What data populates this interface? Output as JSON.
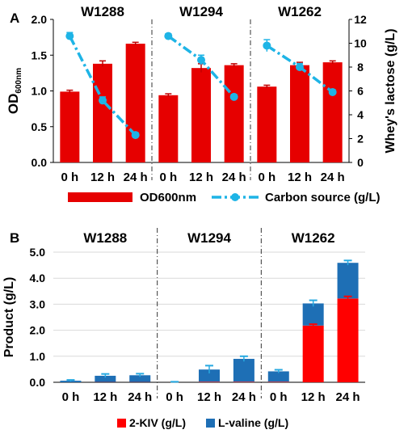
{
  "chart_data": [
    {
      "panel": "A",
      "type": "bar+line",
      "strains": [
        "W1288",
        "W1294",
        "W1262"
      ],
      "categories": [
        "0 h",
        "12 h",
        "24 h"
      ],
      "ylabel": "OD600nm",
      "ylabel_main": "OD",
      "ylabel_sub": "600nm",
      "y2label": "Whey's lactose (g/L)",
      "ylim": [
        0,
        2.0
      ],
      "y2lim": [
        0,
        12
      ],
      "yticks": [
        "0.0",
        "0.5",
        "1.0",
        "1.5",
        "2.0"
      ],
      "y2ticks": [
        "0",
        "2",
        "4",
        "6",
        "8",
        "10",
        "12"
      ],
      "legend_position": "bottom",
      "series": [
        {
          "name": "OD600nm",
          "kind": "bar",
          "color": "#e60000",
          "values": [
            [
              0.99,
              1.38,
              1.66
            ],
            [
              0.94,
              1.32,
              1.36
            ],
            [
              1.06,
              1.36,
              1.4
            ]
          ],
          "errors": [
            [
              0.02,
              0.04,
              0.02
            ],
            [
              0.02,
              0.06,
              0.02
            ],
            [
              0.02,
              0.04,
              0.02
            ]
          ]
        },
        {
          "name": "Carbon source (g/L)",
          "kind": "line",
          "color": "#1eb4e6",
          "values": [
            [
              10.6,
              5.2,
              2.3
            ],
            [
              10.6,
              8.6,
              5.5
            ],
            [
              9.8,
              8.0,
              5.9
            ]
          ],
          "errors": [
            [
              0.3,
              0.3,
              0.2
            ],
            [
              0.2,
              0.4,
              0.2
            ],
            [
              0.5,
              0.3,
              0.2
            ]
          ]
        }
      ]
    },
    {
      "panel": "B",
      "type": "stacked-bar",
      "strains": [
        "W1288",
        "W1294",
        "W1262"
      ],
      "categories": [
        "0 h",
        "12 h",
        "24 h"
      ],
      "ylabel": "Product (g/L)",
      "ylim": [
        0,
        5.0
      ],
      "yticks": [
        "0.0",
        "1.0",
        "2.0",
        "3.0",
        "4.0",
        "5.0"
      ],
      "legend_position": "bottom",
      "series": [
        {
          "name": "2-KIV (g/L)",
          "color": "#ff0000",
          "values": [
            [
              0.0,
              0.01,
              0.01
            ],
            [
              0.0,
              0.02,
              0.02
            ],
            [
              0.02,
              2.18,
              3.22
            ]
          ],
          "errors": [
            [
              0.0,
              0.0,
              0.0
            ],
            [
              0.0,
              0.0,
              0.0
            ],
            [
              0.0,
              0.05,
              0.08
            ]
          ]
        },
        {
          "name": "L-valine (g/L)",
          "color": "#1e6fb5",
          "values": [
            [
              0.06,
              0.24,
              0.26
            ],
            [
              0.0,
              0.47,
              0.88
            ],
            [
              0.4,
              0.85,
              1.37
            ]
          ],
          "errors": [
            [
              0.03,
              0.07,
              0.06
            ],
            [
              0.02,
              0.15,
              0.1
            ],
            [
              0.06,
              0.12,
              0.09
            ]
          ]
        }
      ]
    }
  ]
}
